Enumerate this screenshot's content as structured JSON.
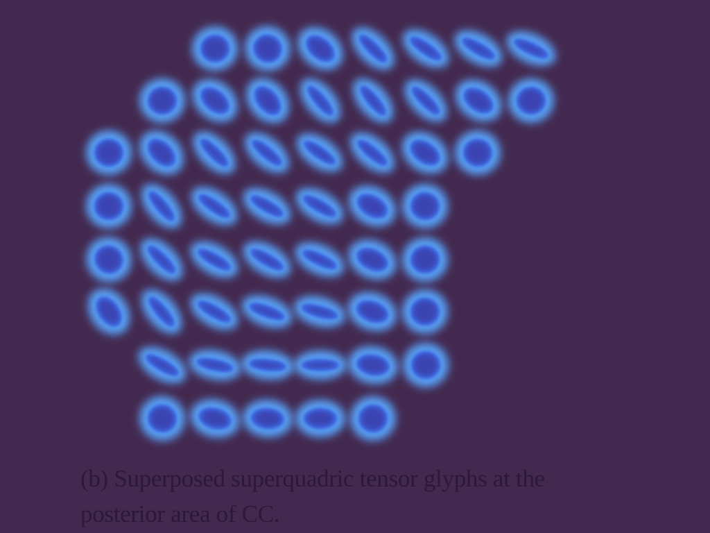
{
  "figure": {
    "caption_line1": "(b) Superposed superquadric tensor glyphs at the",
    "caption_line2": "posterior area of CC."
  },
  "colors": {
    "background": "#43294f",
    "glyph_halo": "#5aa6ff",
    "glyph_body": "#3a63e0",
    "glyph_core": "#3a2b8a",
    "caption_text": "#2c1838"
  },
  "glyph_rows": [
    [
      {
        "shape": "round",
        "angle": 0
      },
      {
        "shape": "round",
        "angle": 35
      },
      {
        "shape": "oval",
        "angle": 40
      },
      {
        "shape": "rod",
        "angle": 45
      },
      {
        "shape": "rod",
        "angle": 35
      },
      {
        "shape": "rod",
        "angle": 30
      },
      {
        "shape": "rod",
        "angle": 25
      }
    ],
    [
      {
        "shape": "round",
        "angle": 0
      },
      {
        "shape": "oval",
        "angle": 40
      },
      {
        "shape": "oval",
        "angle": 50
      },
      {
        "shape": "rod",
        "angle": 50
      },
      {
        "shape": "rod",
        "angle": 50
      },
      {
        "shape": "rod",
        "angle": 45
      },
      {
        "shape": "oval",
        "angle": 35
      },
      {
        "shape": "round",
        "angle": 0
      }
    ],
    [
      {
        "shape": "round",
        "angle": 0
      },
      {
        "shape": "oval",
        "angle": 45
      },
      {
        "shape": "rod",
        "angle": 45
      },
      {
        "shape": "rod",
        "angle": 40
      },
      {
        "shape": "rod",
        "angle": 35
      },
      {
        "shape": "rod",
        "angle": 40
      },
      {
        "shape": "oval",
        "angle": 35
      },
      {
        "shape": "round",
        "angle": 10
      }
    ],
    [
      {
        "shape": "round",
        "angle": 0
      },
      {
        "shape": "rod",
        "angle": 50
      },
      {
        "shape": "rod",
        "angle": 35
      },
      {
        "shape": "rod",
        "angle": 30
      },
      {
        "shape": "rod",
        "angle": 30
      },
      {
        "shape": "oval",
        "angle": 30
      },
      {
        "shape": "round",
        "angle": 10
      }
    ],
    [
      {
        "shape": "round",
        "angle": 40
      },
      {
        "shape": "rod",
        "angle": 45
      },
      {
        "shape": "rod",
        "angle": 30
      },
      {
        "shape": "rod",
        "angle": 30
      },
      {
        "shape": "rod",
        "angle": 25
      },
      {
        "shape": "oval",
        "angle": 25
      },
      {
        "shape": "round",
        "angle": 0
      }
    ],
    [
      {
        "shape": "oval",
        "angle": 55
      },
      {
        "shape": "rod",
        "angle": 50
      },
      {
        "shape": "rod",
        "angle": 30
      },
      {
        "shape": "rod",
        "angle": 20
      },
      {
        "shape": "rod",
        "angle": 15
      },
      {
        "shape": "oval",
        "angle": 20
      },
      {
        "shape": "round",
        "angle": 0
      }
    ],
    [
      {
        "shape": "rod",
        "angle": 30
      },
      {
        "shape": "rod",
        "angle": 12
      },
      {
        "shape": "rod",
        "angle": 6
      },
      {
        "shape": "rod",
        "angle": 0
      },
      {
        "shape": "oval",
        "angle": 10
      },
      {
        "shape": "round",
        "angle": 0
      }
    ],
    [
      {
        "shape": "round",
        "angle": 20
      },
      {
        "shape": "oval",
        "angle": 15
      },
      {
        "shape": "oval",
        "angle": 5
      },
      {
        "shape": "oval",
        "angle": 0
      },
      {
        "shape": "round",
        "angle": 0
      }
    ]
  ]
}
